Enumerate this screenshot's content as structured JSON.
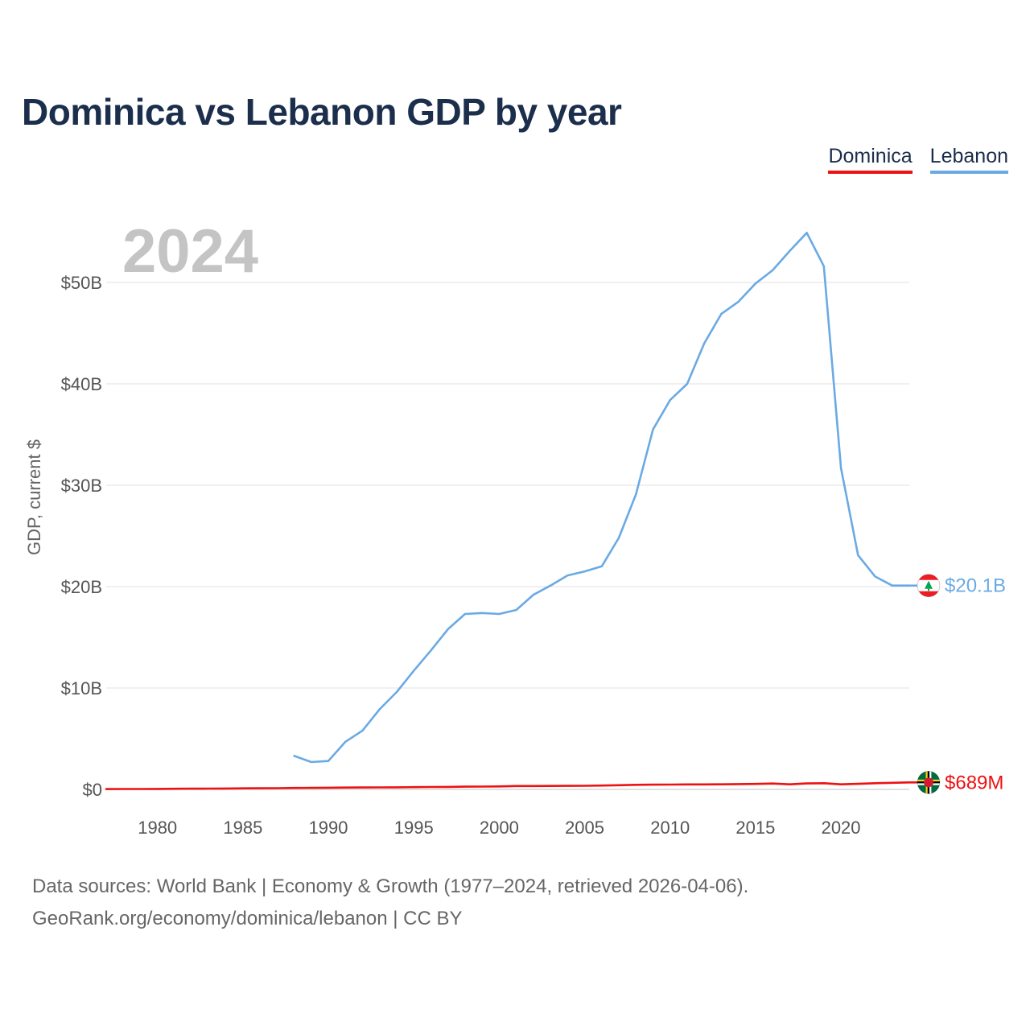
{
  "title": "Dominica vs Lebanon GDP by year",
  "legend": [
    {
      "name": "Dominica",
      "color": "#ee1111"
    },
    {
      "name": "Lebanon",
      "color": "#6aaae4"
    }
  ],
  "chart_data": {
    "type": "line",
    "title": "Dominica vs Lebanon GDP by year",
    "xlabel": "",
    "ylabel": "GDP, current $",
    "year_watermark": "2024",
    "xlim": [
      1977,
      2024
    ],
    "ylim": [
      0,
      55
    ],
    "y_unit": "billion US$",
    "grid": true,
    "legend_position": "top-right",
    "x_ticks": [
      1980,
      1985,
      1990,
      1995,
      2000,
      2005,
      2010,
      2015,
      2020
    ],
    "x_tick_labels": [
      "1980",
      "1985",
      "1990",
      "1995",
      "2000",
      "2005",
      "2010",
      "2015",
      "2020"
    ],
    "y_ticks": [
      0,
      10,
      20,
      30,
      40,
      50
    ],
    "y_tick_labels": [
      "$0",
      "$10B",
      "$20B",
      "$30B",
      "$40B",
      "$50B"
    ],
    "series": [
      {
        "name": "Dominica",
        "color": "#ee1111",
        "end_label": "$689M",
        "x": [
          1977,
          1978,
          1979,
          1980,
          1981,
          1982,
          1983,
          1984,
          1985,
          1986,
          1987,
          1988,
          1989,
          1990,
          1991,
          1992,
          1993,
          1994,
          1995,
          1996,
          1997,
          1998,
          1999,
          2000,
          2001,
          2002,
          2003,
          2004,
          2005,
          2006,
          2007,
          2008,
          2009,
          2010,
          2011,
          2012,
          2013,
          2014,
          2015,
          2016,
          2017,
          2018,
          2019,
          2020,
          2021,
          2022,
          2023,
          2024
        ],
        "values": [
          0.03,
          0.04,
          0.04,
          0.05,
          0.06,
          0.07,
          0.08,
          0.09,
          0.1,
          0.11,
          0.12,
          0.14,
          0.15,
          0.17,
          0.18,
          0.19,
          0.2,
          0.21,
          0.22,
          0.24,
          0.25,
          0.27,
          0.28,
          0.29,
          0.33,
          0.33,
          0.34,
          0.35,
          0.36,
          0.38,
          0.41,
          0.45,
          0.47,
          0.48,
          0.49,
          0.49,
          0.5,
          0.52,
          0.54,
          0.58,
          0.5,
          0.59,
          0.61,
          0.5,
          0.55,
          0.61,
          0.65,
          0.689
        ]
      },
      {
        "name": "Lebanon",
        "color": "#6aaae4",
        "end_label": "$20.1B",
        "x": [
          1988,
          1989,
          1990,
          1991,
          1992,
          1993,
          1994,
          1995,
          1996,
          1997,
          1998,
          1999,
          2000,
          2001,
          2002,
          2003,
          2004,
          2005,
          2006,
          2007,
          2008,
          2009,
          2010,
          2011,
          2012,
          2013,
          2014,
          2015,
          2016,
          2017,
          2018,
          2019,
          2020,
          2021,
          2022,
          2023,
          2024
        ],
        "values": [
          3.3,
          2.7,
          2.8,
          4.7,
          5.8,
          7.9,
          9.6,
          11.7,
          13.7,
          15.8,
          17.3,
          17.4,
          17.3,
          17.7,
          19.2,
          20.1,
          21.1,
          21.5,
          22.0,
          24.8,
          29.1,
          35.5,
          38.4,
          40.0,
          44.0,
          46.9,
          48.1,
          49.9,
          51.2,
          53.1,
          54.9,
          51.6,
          31.7,
          23.1,
          21.0,
          20.1,
          20.1
        ]
      }
    ]
  },
  "source": {
    "line1": "Data sources: World Bank | Economy & Growth (1977–2024, retrieved 2026-04-06).",
    "line2": "GeoRank.org/economy/dominica/lebanon | CC BY"
  },
  "icons": {
    "dominica": "dominica-flag-icon",
    "lebanon": "lebanon-flag-icon"
  }
}
